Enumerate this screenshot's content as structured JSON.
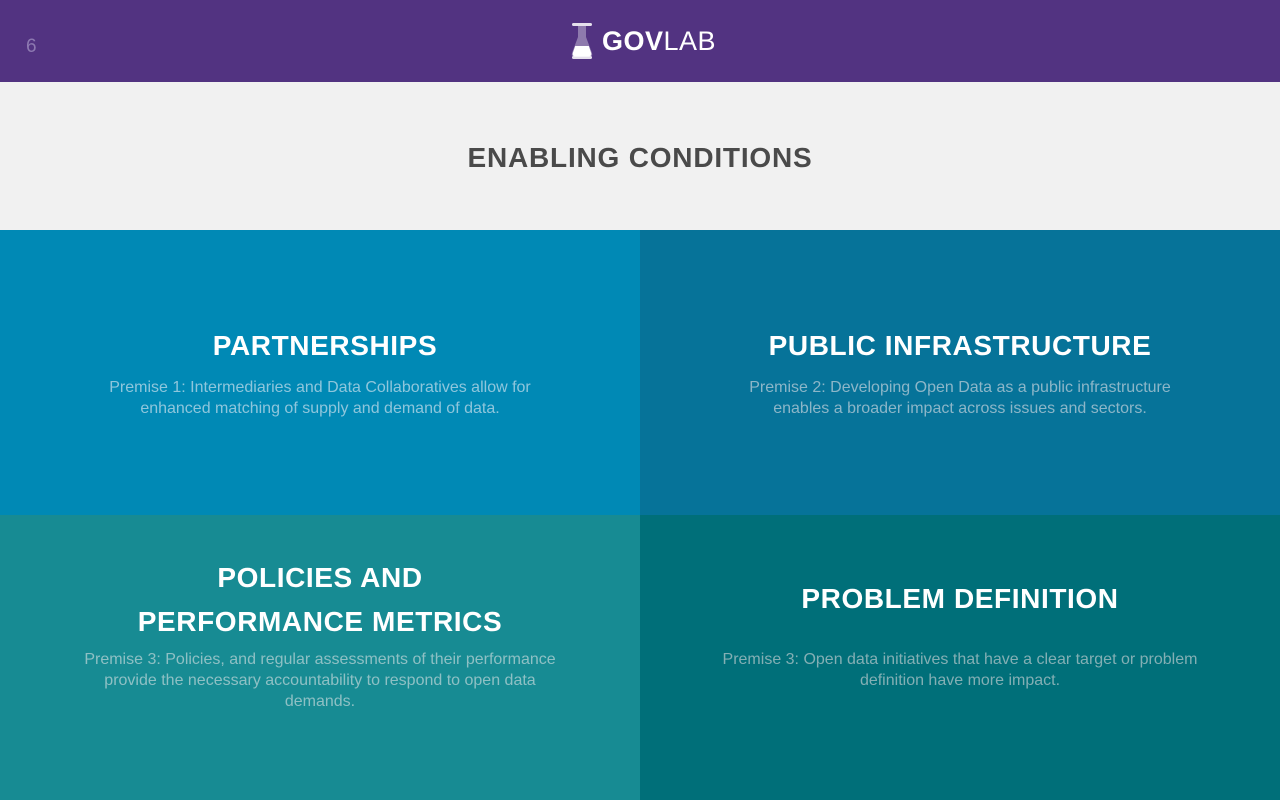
{
  "header": {
    "page_number": "6",
    "logo": {
      "icon": "flask-icon",
      "text_bold": "GOV",
      "text_light": "LAB"
    }
  },
  "slide": {
    "title": "ENABLING CONDITIONS"
  },
  "quadrants": [
    {
      "title_lines": [
        "PARTNERSHIPS"
      ],
      "text": "Premise 1: Intermediaries and Data Collaboratives allow for enhanced matching of supply and demand of data.",
      "color": "#0089b5"
    },
    {
      "title_lines": [
        "PUBLIC INFRASTRUCTURE"
      ],
      "text": "Premise 2: Developing Open Data as a public infrastructure enables a broader impact across issues and sectors.",
      "color": "#067399"
    },
    {
      "title_lines": [
        "POLICIES AND",
        "PERFORMANCE METRICS"
      ],
      "text": "Premise 3: Policies, and regular assessments of their performance provide the necessary accountability to respond to open data demands.",
      "color": "#178b93"
    },
    {
      "title_lines": [
        "PROBLEM DEFINITION"
      ],
      "text": "Premise 3: Open data initiatives that have a clear target or problem definition have more impact.",
      "color": "#006f79"
    }
  ],
  "colors": {
    "header_bg": "#523381",
    "title_band_bg": "#f1f1f1",
    "title_text": "#4a4a4a"
  }
}
